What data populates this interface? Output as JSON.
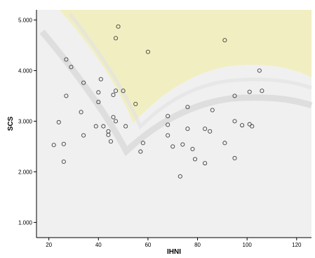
{
  "chart_data": {
    "type": "scatter",
    "title": "",
    "xlabel": "IHNI",
    "ylabel": "SCS",
    "xlim": [
      15,
      126
    ],
    "ylim": [
      0.7,
      5.2
    ],
    "x_ticks": [
      20,
      40,
      60,
      80,
      100,
      120
    ],
    "x_tick_labels": [
      "20",
      "40",
      "60",
      "80",
      "100",
      "120"
    ],
    "y_ticks": [
      1,
      2,
      3,
      4,
      5
    ],
    "y_tick_labels": [
      "1.000",
      "2.000",
      "3.000",
      "4.000",
      "5.000"
    ],
    "grid": false,
    "legend": "none",
    "marker": "open-circle",
    "colors": {
      "plot_background": "#f0f0f0",
      "marker_stroke": "#404040",
      "axis": "#000000",
      "watermark": "#f3ee9a"
    },
    "points": [
      [
        22,
        2.53
      ],
      [
        24,
        2.98
      ],
      [
        26,
        2.55
      ],
      [
        26,
        2.2
      ],
      [
        27,
        4.22
      ],
      [
        29,
        4.07
      ],
      [
        27,
        3.5
      ],
      [
        33,
        3.18
      ],
      [
        34,
        3.76
      ],
      [
        34,
        2.72
      ],
      [
        39,
        2.9
      ],
      [
        40,
        3.57
      ],
      [
        41,
        3.83
      ],
      [
        40,
        3.38
      ],
      [
        42,
        2.9
      ],
      [
        44,
        2.8
      ],
      [
        44,
        2.73
      ],
      [
        45,
        2.6
      ],
      [
        46,
        3.08
      ],
      [
        47,
        3.0
      ],
      [
        46,
        3.52
      ],
      [
        47,
        3.6
      ],
      [
        47,
        4.64
      ],
      [
        48,
        4.87
      ],
      [
        50,
        3.6
      ],
      [
        51,
        2.9
      ],
      [
        55,
        3.34
      ],
      [
        57,
        2.4
      ],
      [
        58,
        2.57
      ],
      [
        60,
        4.37
      ],
      [
        68,
        3.1
      ],
      [
        68,
        2.93
      ],
      [
        68,
        2.72
      ],
      [
        70,
        2.5
      ],
      [
        73,
        1.91
      ],
      [
        74,
        2.54
      ],
      [
        76,
        2.85
      ],
      [
        76,
        3.28
      ],
      [
        78,
        2.45
      ],
      [
        79,
        2.25
      ],
      [
        83,
        2.17
      ],
      [
        83,
        2.85
      ],
      [
        85,
        2.8
      ],
      [
        86,
        3.22
      ],
      [
        91,
        4.6
      ],
      [
        91,
        2.57
      ],
      [
        95,
        3.5
      ],
      [
        95,
        3.0
      ],
      [
        95,
        2.27
      ],
      [
        98,
        2.92
      ],
      [
        101,
        2.94
      ],
      [
        101,
        3.58
      ],
      [
        102,
        2.9
      ],
      [
        105,
        4.0
      ],
      [
        106,
        3.6
      ]
    ]
  }
}
